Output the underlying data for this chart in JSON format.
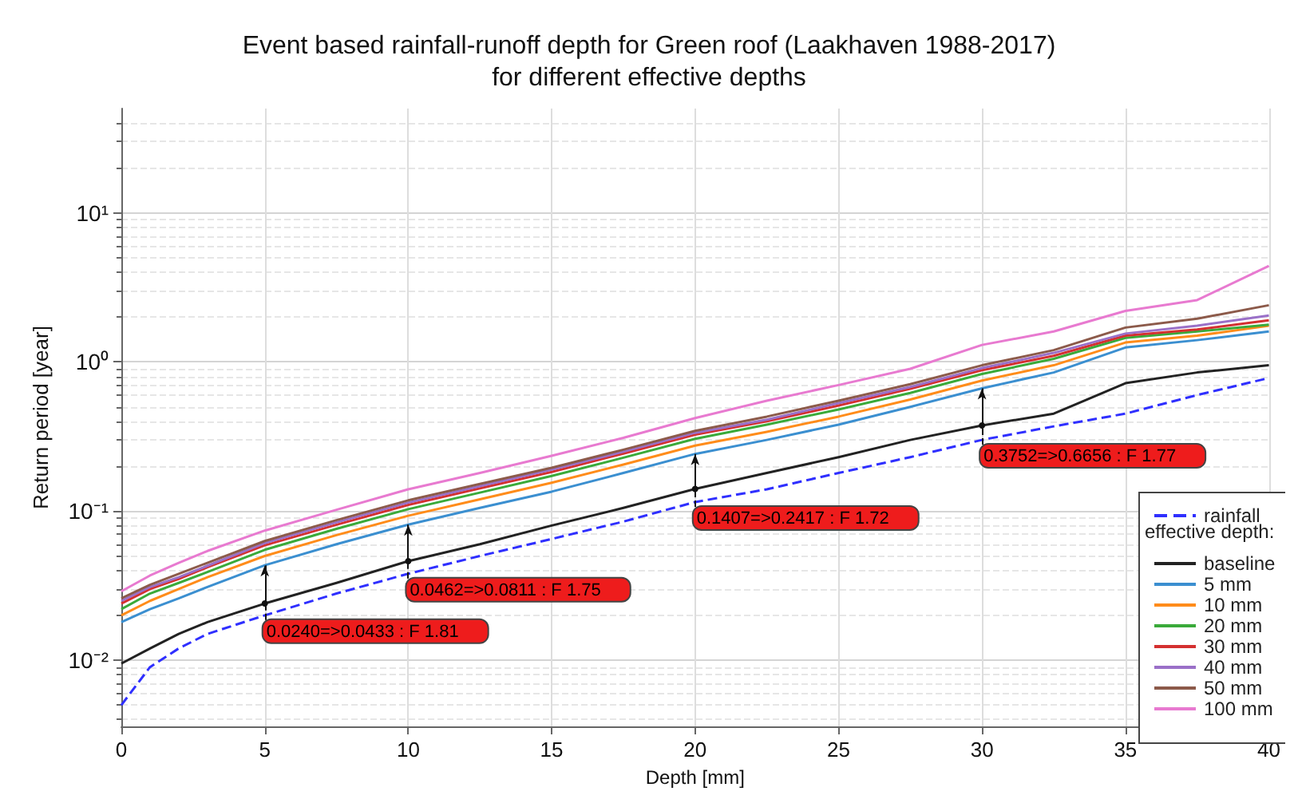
{
  "chart_data": {
    "type": "line",
    "title": "Event based rainfall-runoff depth for Green roof (Laakhaven 1988-2017)",
    "subtitle": "for different effective depths",
    "xlabel": "Depth [mm]",
    "ylabel": "Return period [year]",
    "legend_title": "effective depth:",
    "legend": "bottom right",
    "grid": true,
    "log": "y",
    "marker": "none",
    "x": [
      0,
      1,
      2,
      3,
      5,
      7.5,
      10,
      12.5,
      15,
      17.5,
      20,
      22.5,
      25,
      27.5,
      30,
      32.5,
      35,
      37.5,
      40
    ],
    "xlim": [
      0,
      40
    ],
    "xticks": [
      0,
      5,
      10,
      15,
      20,
      25,
      30,
      35,
      40
    ],
    "ylim": [
      0.0036,
      50
    ],
    "yticks": [
      {
        "value": 0.01,
        "label": "10⁻²"
      },
      {
        "value": 0.1,
        "label": "10⁻¹"
      },
      {
        "value": 1,
        "label": "10⁰"
      },
      {
        "value": 10,
        "label": "10¹"
      }
    ],
    "series": [
      {
        "name": "rainfall",
        "color": "#2f2fff",
        "line_style": "dashed",
        "values": [
          0.005,
          0.009,
          0.012,
          0.015,
          0.02,
          0.028,
          0.038,
          0.05,
          0.065,
          0.085,
          0.115,
          0.14,
          0.18,
          0.23,
          0.3,
          0.37,
          0.45,
          0.6,
          0.78
        ]
      },
      {
        "name": "baseline",
        "color": "#222222",
        "values": [
          0.0095,
          0.012,
          0.015,
          0.018,
          0.024,
          0.033,
          0.0462,
          0.06,
          0.08,
          0.105,
          0.1407,
          0.18,
          0.23,
          0.3,
          0.3752,
          0.45,
          0.72,
          0.85,
          0.95
        ]
      },
      {
        "name": "5 mm",
        "color": "#3b8fd0",
        "values": [
          0.018,
          0.022,
          0.026,
          0.031,
          0.0433,
          0.06,
          0.0811,
          0.105,
          0.135,
          0.18,
          0.2417,
          0.3,
          0.38,
          0.5,
          0.6656,
          0.85,
          1.25,
          1.4,
          1.6
        ]
      },
      {
        "name": "10 mm",
        "color": "#ff8c1a",
        "values": [
          0.02,
          0.025,
          0.03,
          0.036,
          0.05,
          0.069,
          0.093,
          0.12,
          0.155,
          0.205,
          0.275,
          0.34,
          0.43,
          0.56,
          0.75,
          0.95,
          1.35,
          1.5,
          1.75
        ]
      },
      {
        "name": "20 mm",
        "color": "#3aaa3a",
        "values": [
          0.022,
          0.028,
          0.033,
          0.039,
          0.055,
          0.076,
          0.103,
          0.133,
          0.172,
          0.228,
          0.305,
          0.38,
          0.48,
          0.62,
          0.83,
          1.05,
          1.45,
          1.6,
          1.78
        ]
      },
      {
        "name": "30 mm",
        "color": "#d43030",
        "values": [
          0.024,
          0.03,
          0.035,
          0.042,
          0.059,
          0.081,
          0.11,
          0.142,
          0.183,
          0.243,
          0.325,
          0.4,
          0.51,
          0.66,
          0.88,
          1.1,
          1.5,
          1.65,
          1.9
        ]
      },
      {
        "name": "40 mm",
        "color": "#9a70c8",
        "values": [
          0.025,
          0.031,
          0.036,
          0.043,
          0.061,
          0.084,
          0.114,
          0.147,
          0.19,
          0.25,
          0.335,
          0.41,
          0.53,
          0.68,
          0.91,
          1.15,
          1.55,
          1.75,
          2.05
        ]
      },
      {
        "name": "50 mm",
        "color": "#8c5a4a",
        "values": [
          0.026,
          0.032,
          0.038,
          0.045,
          0.063,
          0.087,
          0.118,
          0.152,
          0.195,
          0.258,
          0.345,
          0.43,
          0.55,
          0.71,
          0.95,
          1.2,
          1.7,
          1.95,
          2.4
        ]
      },
      {
        "name": "100 mm",
        "color": "#e87ad0",
        "values": [
          0.029,
          0.037,
          0.045,
          0.054,
          0.074,
          0.102,
          0.14,
          0.18,
          0.235,
          0.31,
          0.42,
          0.55,
          0.7,
          0.9,
          1.3,
          1.6,
          2.2,
          2.6,
          4.4
        ]
      }
    ],
    "annotations": [
      {
        "text": "0.0240=>0.0433 : F 1.81",
        "x": 5,
        "y": 0.024
      },
      {
        "text": "0.0462=>0.0811 : F 1.75",
        "x": 10,
        "y": 0.0462
      },
      {
        "text": "0.1407=>0.2417 : F 1.72",
        "x": 20,
        "y": 0.1407
      },
      {
        "text": "0.3752=>0.6656 : F 1.77",
        "x": 30,
        "y": 0.3752
      }
    ]
  }
}
